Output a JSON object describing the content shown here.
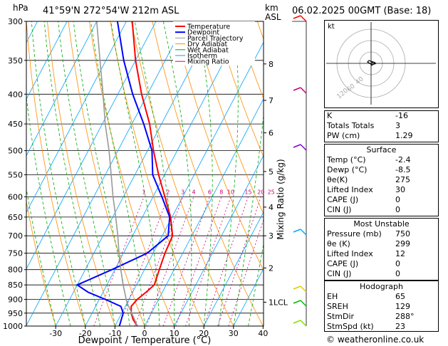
{
  "header": {
    "p_unit": "hPa",
    "location": "41°59'N  272°54'W  212m  ASL",
    "km_asl": [
      "km",
      "ASL"
    ],
    "datetime": "06.02.2025  00GMT  (Base: 18)"
  },
  "legend": [
    {
      "label": "Temperature",
      "color": "#ff0000"
    },
    {
      "label": "Dewpoint",
      "color": "#0000ff"
    },
    {
      "label": "Parcel Trajectory",
      "color": "#999999"
    },
    {
      "label": "Dry Adiabat",
      "color": "#ff8c00"
    },
    {
      "label": "Wet Adiabat",
      "color": "#00aa00"
    },
    {
      "label": "Isotherm",
      "color": "#00a0ff"
    },
    {
      "label": "Mixing Ratio",
      "color": "#cc0077"
    }
  ],
  "chart_data": {
    "type": "line",
    "title": "",
    "xlabel": "Dewpoint / Temperature (°C)",
    "ylabel": "",
    "y_scale": "log-pressure",
    "xlim": [
      -40,
      40
    ],
    "ylim": [
      1000,
      300
    ],
    "x_ticks": [
      -30,
      -20,
      -10,
      0,
      10,
      20,
      30,
      40
    ],
    "pressure_ticks": [
      300,
      350,
      400,
      450,
      500,
      550,
      600,
      650,
      700,
      750,
      800,
      850,
      900,
      950,
      1000
    ],
    "km_ticks": [
      {
        "label": "1LCL",
        "p": 910
      },
      {
        "label": "2",
        "p": 795
      },
      {
        "label": "3",
        "p": 700
      },
      {
        "label": "4",
        "p": 625
      },
      {
        "label": "5",
        "p": 543
      },
      {
        "label": "6",
        "p": 466
      },
      {
        "label": "7",
        "p": 410
      },
      {
        "label": "8",
        "p": 355
      }
    ],
    "mixing_ratio_axis_label": "Mixing Ratio (g/kg)",
    "mixing_ratio_labels": [
      "1",
      "2",
      "3",
      "4",
      "6",
      "8",
      "10",
      "15",
      "20",
      "25"
    ],
    "mixing_ratio_values": [
      1,
      2,
      3,
      4,
      6,
      8,
      10,
      15,
      20,
      25
    ],
    "series": [
      {
        "name": "Temperature",
        "color": "#ff0000",
        "points": [
          [
            1000,
            -2.4
          ],
          [
            975,
            -5
          ],
          [
            950,
            -6.8
          ],
          [
            925,
            -8
          ],
          [
            900,
            -7.2
          ],
          [
            875,
            -5.5
          ],
          [
            850,
            -4
          ],
          [
            800,
            -5
          ],
          [
            750,
            -6
          ],
          [
            700,
            -6.5
          ],
          [
            650,
            -10.5
          ],
          [
            600,
            -16
          ],
          [
            550,
            -22
          ],
          [
            500,
            -28
          ],
          [
            450,
            -34
          ],
          [
            400,
            -42
          ],
          [
            350,
            -50
          ],
          [
            300,
            -58
          ]
        ]
      },
      {
        "name": "Dewpoint",
        "color": "#0000ff",
        "points": [
          [
            1000,
            -8.5
          ],
          [
            950,
            -9.5
          ],
          [
            925,
            -11.5
          ],
          [
            900,
            -18
          ],
          [
            875,
            -25
          ],
          [
            850,
            -30
          ],
          [
            800,
            -21
          ],
          [
            750,
            -12
          ],
          [
            700,
            -8
          ],
          [
            650,
            -10.8
          ],
          [
            600,
            -17
          ],
          [
            550,
            -24
          ],
          [
            500,
            -28.5
          ],
          [
            450,
            -36
          ],
          [
            400,
            -45
          ],
          [
            350,
            -54
          ],
          [
            300,
            -63
          ]
        ]
      },
      {
        "name": "Parcel Trajectory",
        "color": "#999999",
        "points": [
          [
            1000,
            -2.4
          ],
          [
            910,
            -10.2
          ],
          [
            850,
            -14.5
          ],
          [
            800,
            -18
          ],
          [
            750,
            -21.5
          ],
          [
            700,
            -25
          ],
          [
            650,
            -29
          ],
          [
            600,
            -33.5
          ],
          [
            550,
            -38
          ],
          [
            500,
            -43
          ],
          [
            450,
            -49
          ],
          [
            400,
            -55
          ],
          [
            350,
            -62
          ],
          [
            300,
            -70
          ]
        ]
      }
    ]
  },
  "hodograph": {
    "unit": "kt",
    "ring_labels": [
      "40",
      "60",
      "120"
    ]
  },
  "indices": [
    {
      "label": "K",
      "value": "-16"
    },
    {
      "label": "Totals Totals",
      "value": "3"
    },
    {
      "label": "PW (cm)",
      "value": "1.29"
    }
  ],
  "surface": {
    "title": "Surface",
    "rows": [
      {
        "label": "Temp (°C)",
        "value": "-2.4"
      },
      {
        "label": "Dewp (°C)",
        "value": "-8.5"
      },
      {
        "label": "θe(K)",
        "value": "275"
      },
      {
        "label": "Lifted Index",
        "value": "30"
      },
      {
        "label": "CAPE (J)",
        "value": "0"
      },
      {
        "label": "CIN (J)",
        "value": "0"
      }
    ]
  },
  "most_unstable": {
    "title": "Most Unstable",
    "rows": [
      {
        "label": "Pressure (mb)",
        "value": "750"
      },
      {
        "label": "θe (K)",
        "value": "299"
      },
      {
        "label": "Lifted Index",
        "value": "12"
      },
      {
        "label": "CAPE (J)",
        "value": "0"
      },
      {
        "label": "CIN (J)",
        "value": "0"
      }
    ]
  },
  "hodograph_table": {
    "title": "Hodograph",
    "rows": [
      {
        "label": "EH",
        "value": "65"
      },
      {
        "label": "SREH",
        "value": "129"
      },
      {
        "label": "StmDir",
        "value": "288°"
      },
      {
        "label": "StmSpd (kt)",
        "value": "23"
      }
    ]
  },
  "footer": "© weatheronline.co.uk",
  "colors": {
    "temperature": "#ff0000",
    "dewpoint": "#0000ff",
    "parcel": "#999999",
    "dry_adiabat": "#ff8c00",
    "wet_adiabat": "#00aa00",
    "isotherm": "#00a0ff",
    "mixing_ratio": "#cc0077"
  }
}
